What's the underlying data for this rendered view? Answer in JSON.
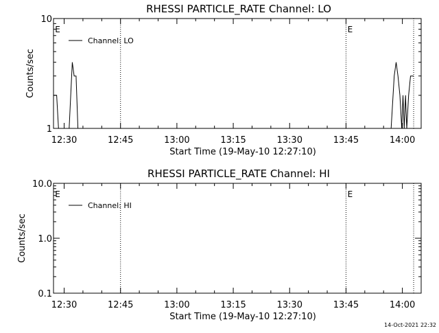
{
  "footer": {
    "timestamp": "14-Oct-2021 22:32"
  },
  "chart_data": [
    {
      "type": "line",
      "title": "RHESSI PARTICLE_RATE Channel: LO",
      "xlabel": "Start Time (19-May-10 12:27:10)",
      "ylabel": "Counts/sec",
      "yscale": "log",
      "xlim": [
        "12:27:10",
        "14:05:00"
      ],
      "ylim": [
        1,
        10
      ],
      "x_ticks": [
        "12:30",
        "12:45",
        "13:00",
        "13:15",
        "13:30",
        "13:45",
        "14:00"
      ],
      "y_ticks": [
        {
          "value": 1,
          "label": "1"
        },
        {
          "value": 10,
          "label": "10"
        }
      ],
      "legend": {
        "position": "top-left",
        "entries": [
          "Channel: LO"
        ]
      },
      "eclipse_lines": [
        {
          "time": "12:27:10",
          "label": "E"
        },
        {
          "time": "13:45:00",
          "label": "E"
        }
      ],
      "dotted_lines": [
        "12:45:00",
        "13:45:00",
        "14:03:00"
      ],
      "series": [
        {
          "name": "Channel: LO",
          "segments": [
            [
              [
                "12:27:10",
                2
              ],
              [
                "12:28:00",
                2
              ],
              [
                "12:28:30",
                1
              ]
            ],
            [
              [
                "12:31:20",
                1
              ],
              [
                "12:32:10",
                4
              ],
              [
                "12:32:40",
                3
              ],
              [
                "12:33:10",
                3
              ],
              [
                "12:33:40",
                1
              ]
            ],
            [
              [
                "13:57:00",
                1
              ],
              [
                "13:57:50",
                3
              ],
              [
                "13:58:20",
                4
              ],
              [
                "13:58:50",
                3
              ],
              [
                "13:59:20",
                2
              ],
              [
                "13:59:50",
                1
              ],
              [
                "14:00:10",
                2
              ],
              [
                "14:00:30",
                1
              ],
              [
                "14:00:50",
                2
              ],
              [
                "14:01:10",
                1
              ],
              [
                "14:01:40",
                2
              ],
              [
                "14:02:10",
                3
              ],
              [
                "14:03:00",
                3
              ]
            ]
          ]
        }
      ]
    },
    {
      "type": "line",
      "title": "RHESSI PARTICLE_RATE Channel: HI",
      "xlabel": "Start Time (19-May-10 12:27:10)",
      "ylabel": "Counts/sec",
      "yscale": "log",
      "xlim": [
        "12:27:10",
        "14:05:00"
      ],
      "ylim": [
        0.1,
        10
      ],
      "x_ticks": [
        "12:30",
        "12:45",
        "13:00",
        "13:15",
        "13:30",
        "13:45",
        "14:00"
      ],
      "y_ticks": [
        {
          "value": 0.1,
          "label": "0.1"
        },
        {
          "value": 1,
          "label": "1.0"
        },
        {
          "value": 10,
          "label": "10.0"
        }
      ],
      "legend": {
        "position": "top-left",
        "entries": [
          "Channel: HI"
        ]
      },
      "eclipse_lines": [
        {
          "time": "12:27:10",
          "label": "E"
        },
        {
          "time": "13:45:00",
          "label": "E"
        }
      ],
      "dotted_lines": [
        "12:45:00",
        "13:45:00",
        "14:03:00"
      ],
      "series": [
        {
          "name": "Channel: HI",
          "segments": []
        }
      ]
    }
  ]
}
